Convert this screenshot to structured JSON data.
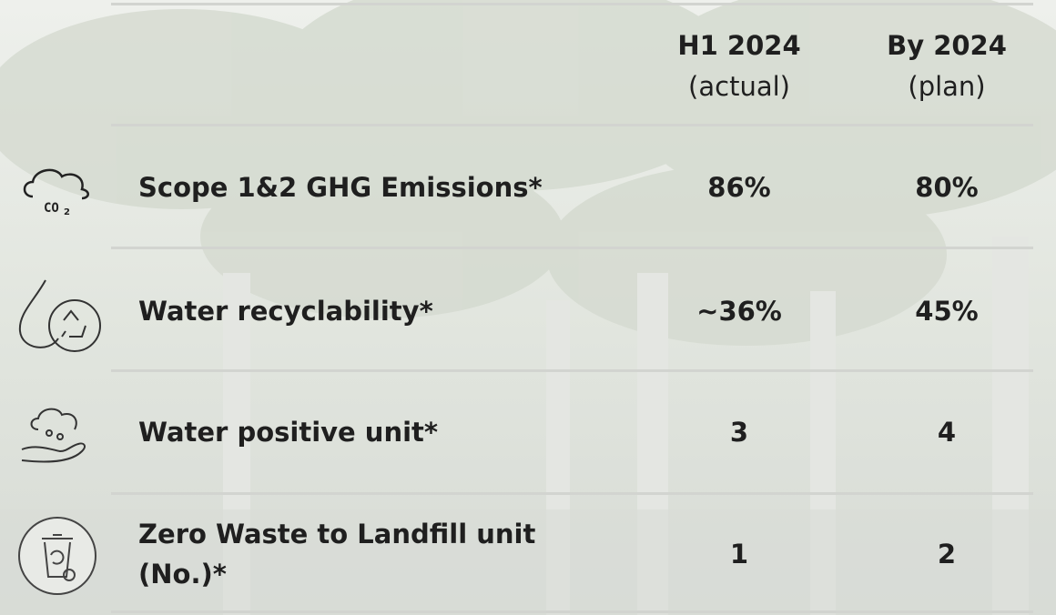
{
  "table": {
    "columns": [
      {
        "title": "H1 2024",
        "subtitle": "(actual)"
      },
      {
        "title": "By 2024",
        "subtitle": "(plan)"
      }
    ],
    "rows": [
      {
        "label": [
          "Scope 1&2 GHG Emissions*"
        ],
        "cells": [
          "86%",
          "80%"
        ]
      },
      {
        "label": [
          "Water recyclability*"
        ],
        "cells": [
          "~36%",
          "45%"
        ]
      },
      {
        "label": [
          "Water positive unit*"
        ],
        "cells": [
          "3",
          "4"
        ]
      },
      {
        "label": [
          "Zero Waste to Landfill unit",
          "(No.)*"
        ],
        "cells": [
          "1",
          "2"
        ]
      }
    ]
  }
}
